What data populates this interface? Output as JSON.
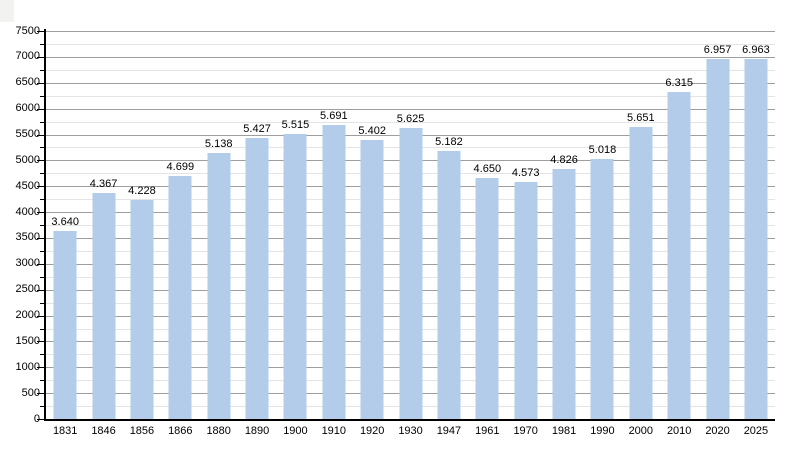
{
  "chart_data": {
    "type": "bar",
    "title": "",
    "xlabel": "",
    "ylabel": "",
    "categories": [
      "1831",
      "1846",
      "1856",
      "1866",
      "1880",
      "1890",
      "1900",
      "1910",
      "1920",
      "1930",
      "1947",
      "1961",
      "1970",
      "1981",
      "1990",
      "2000",
      "2010",
      "2020",
      "2025"
    ],
    "values": [
      3640,
      4367,
      4228,
      4699,
      5138,
      5427,
      5515,
      5691,
      5402,
      5625,
      5182,
      4650,
      4573,
      4826,
      5018,
      5651,
      6315,
      6957,
      6963
    ],
    "value_labels": [
      "3.640",
      "4.367",
      "4.228",
      "4.699",
      "5.138",
      "5.427",
      "5.515",
      "5.691",
      "5.402",
      "5.625",
      "5.182",
      "4.650",
      "4.573",
      "4.826",
      "5.018",
      "5.651",
      "6.315",
      "6.957",
      "6.963"
    ],
    "ylim": [
      0,
      7500
    ],
    "y_major_step": 500,
    "y_minor_step": 250,
    "y_tick_labels": [
      "0",
      "500",
      "1000",
      "1500",
      "2000",
      "2500",
      "3000",
      "3500",
      "4000",
      "4500",
      "5000",
      "5500",
      "6000",
      "6500",
      "7000",
      "7500"
    ],
    "grid": "horizontal, minor every 250 (light), major every 500 (dark)",
    "legend_position": "none",
    "colors": {
      "bar": "#b2cce9",
      "grid_major": "#9e9e9e",
      "grid_minor": "#e4e4e4",
      "axis": "#000000",
      "text": "#000000",
      "background": "#ffffff"
    }
  }
}
